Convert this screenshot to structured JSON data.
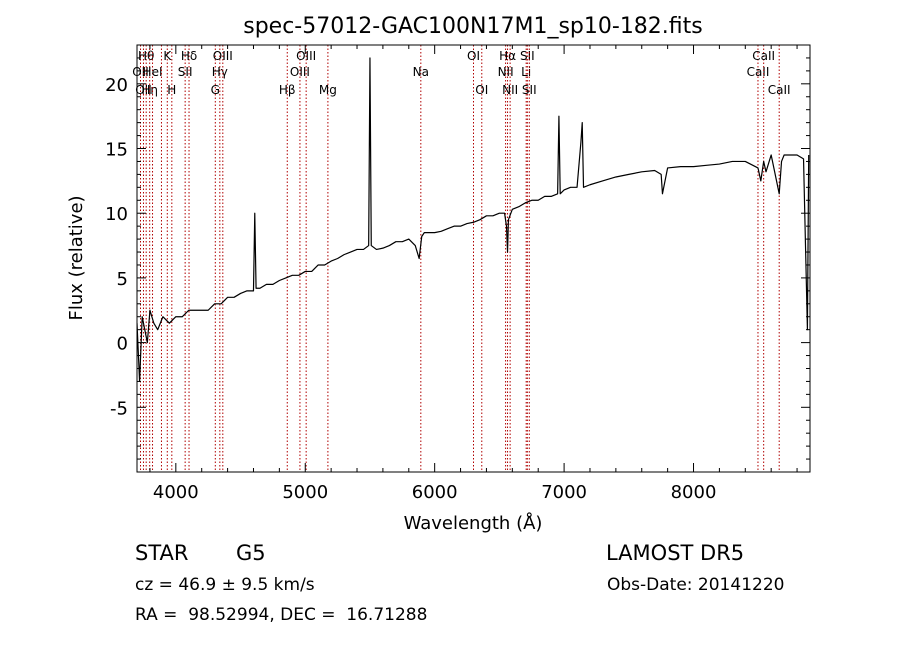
{
  "chart_data": {
    "type": "line",
    "title": "spec-57012-GAC100N17M1_sp10-182.fits",
    "xlabel": "Wavelength (Å)",
    "ylabel": "Flux (relative)",
    "xlim": [
      3700,
      8900
    ],
    "ylim": [
      -10,
      23
    ],
    "xticks": [
      4000,
      5000,
      6000,
      7000,
      8000
    ],
    "yticks": [
      -5,
      0,
      5,
      10,
      15,
      20
    ],
    "grid": false,
    "series": [
      {
        "x": [
          3700,
          3720,
          3740,
          3760,
          3780,
          3800,
          3830,
          3860,
          3900,
          3950,
          4000,
          4050,
          4100,
          4150,
          4200,
          4250,
          4300,
          4350,
          4400,
          4450,
          4500,
          4550,
          4600,
          4610,
          4620,
          4650,
          4700,
          4750,
          4800,
          4850,
          4900,
          4950,
          5000,
          5050,
          5100,
          5150,
          5200,
          5250,
          5300,
          5350,
          5400,
          5450,
          5490,
          5500,
          5510,
          5550,
          5600,
          5650,
          5700,
          5750,
          5800,
          5850,
          5880,
          5900,
          5920,
          5950,
          6000,
          6050,
          6100,
          6150,
          6200,
          6250,
          6300,
          6350,
          6400,
          6450,
          6500,
          6540,
          6555,
          6563,
          6570,
          6600,
          6650,
          6700,
          6750,
          6800,
          6850,
          6900,
          6950,
          6960,
          6970,
          7000,
          7050,
          7100,
          7130,
          7140,
          7150,
          7200,
          7300,
          7400,
          7500,
          7600,
          7700,
          7750,
          7760,
          7800,
          7900,
          8000,
          8100,
          8200,
          8300,
          8400,
          8498,
          8520,
          8542,
          8560,
          8600,
          8662,
          8680,
          8700,
          8800,
          8850,
          8880,
          8890
        ],
        "y": [
          1.5,
          -3,
          2,
          1,
          0,
          2.5,
          1.5,
          1,
          2,
          1.5,
          2,
          2,
          2.5,
          2.5,
          2.5,
          2.5,
          3,
          3,
          3.5,
          3.5,
          3.8,
          4,
          4,
          10,
          4.2,
          4.2,
          4.5,
          4.5,
          4.8,
          5,
          5.2,
          5.2,
          5.5,
          5.5,
          6,
          6,
          6.3,
          6.5,
          6.8,
          7,
          7.2,
          7.2,
          7.5,
          22,
          7.5,
          7.2,
          7.3,
          7.5,
          7.8,
          7.8,
          8,
          7.5,
          6.5,
          8.2,
          8.5,
          8.5,
          8.5,
          8.6,
          8.8,
          9,
          9,
          9.2,
          9.3,
          9.5,
          9.8,
          9.8,
          10,
          10,
          9,
          7,
          9.5,
          10.3,
          10.5,
          10.8,
          11,
          11,
          11.3,
          11.3,
          11.5,
          17.5,
          11.5,
          11.8,
          12,
          12,
          15.5,
          17,
          12,
          12.2,
          12.5,
          12.8,
          13,
          13.2,
          13.3,
          13,
          11.5,
          13.5,
          13.6,
          13.6,
          13.7,
          13.8,
          14,
          14,
          13.5,
          12.5,
          14,
          13.2,
          14.5,
          11.5,
          14,
          14.5,
          14.5,
          14.2,
          1,
          14.5
        ]
      }
    ],
    "lines": [
      {
        "wave": 3727,
        "labels": [
          "OII"
        ],
        "row": 1
      },
      {
        "wave": 3750,
        "labels": [
          "OII"
        ],
        "row": 2
      },
      {
        "wave": 3771,
        "labels": [
          "Hθ"
        ],
        "row": 0
      },
      {
        "wave": 3798,
        "labels": [
          "Hη"
        ],
        "row": 2
      },
      {
        "wave": 3820,
        "labels": [
          "HeI"
        ],
        "row": 1
      },
      {
        "wave": 3889,
        "labels": [],
        "row": 0
      },
      {
        "wave": 3934,
        "labels": [
          "K"
        ],
        "row": 0
      },
      {
        "wave": 3969,
        "labels": [
          "H"
        ],
        "row": 2
      },
      {
        "wave": 4072,
        "labels": [
          "SII"
        ],
        "row": 1
      },
      {
        "wave": 4102,
        "labels": [
          "Hδ"
        ],
        "row": 0
      },
      {
        "wave": 4305,
        "labels": [
          "G"
        ],
        "row": 2
      },
      {
        "wave": 4340,
        "labels": [
          "Hγ"
        ],
        "row": 1
      },
      {
        "wave": 4363,
        "labels": [
          "OIII"
        ],
        "row": 0
      },
      {
        "wave": 4861,
        "labels": [
          "Hβ"
        ],
        "row": 2
      },
      {
        "wave": 4959,
        "labels": [
          "OIII"
        ],
        "row": 1
      },
      {
        "wave": 5007,
        "labels": [
          "OIII"
        ],
        "row": 0
      },
      {
        "wave": 5175,
        "labels": [
          "Mg"
        ],
        "row": 2
      },
      {
        "wave": 5893,
        "labels": [
          "Na"
        ],
        "row": 1
      },
      {
        "wave": 6300,
        "labels": [
          "OI"
        ],
        "row": 0
      },
      {
        "wave": 6364,
        "labels": [
          "OI"
        ],
        "row": 2
      },
      {
        "wave": 6548,
        "labels": [
          "NII"
        ],
        "row": 1
      },
      {
        "wave": 6563,
        "labels": [
          "Hα"
        ],
        "row": 0
      },
      {
        "wave": 6583,
        "labels": [
          "NII"
        ],
        "row": 2
      },
      {
        "wave": 6707,
        "labels": [
          "Li"
        ],
        "row": 1
      },
      {
        "wave": 6716,
        "labels": [
          "SII"
        ],
        "row": 0
      },
      {
        "wave": 6731,
        "labels": [
          "SII"
        ],
        "row": 2
      },
      {
        "wave": 8498,
        "labels": [
          "CaII"
        ],
        "row": 1
      },
      {
        "wave": 8542,
        "labels": [
          "CaII"
        ],
        "row": 0
      },
      {
        "wave": 8662,
        "labels": [
          "CaII"
        ],
        "row": 2
      }
    ]
  },
  "info": {
    "class_label": "STAR",
    "subclass": "G5",
    "survey": "LAMOST DR5",
    "cz": "cz = 46.9 ± 9.5 km/s",
    "obs_date": "Obs-Date: 20141220",
    "radec": "RA =  98.52994, DEC =  16.71288"
  }
}
